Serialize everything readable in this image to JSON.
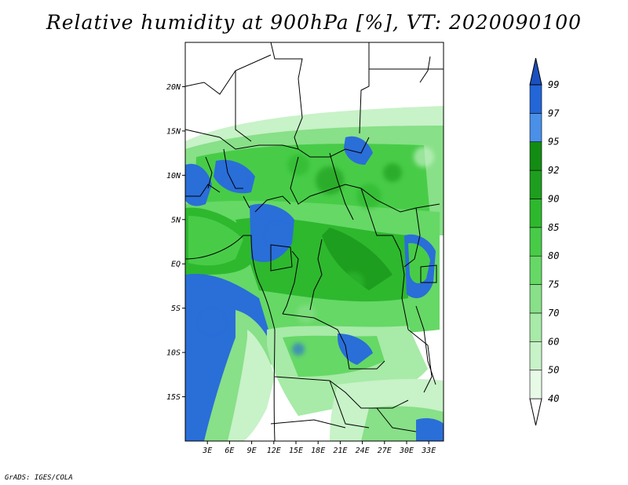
{
  "title": "Relative humidity at 900hPa [%], VT: 2020090100",
  "footer": "GrADS: IGES/COLA",
  "map": {
    "lon_range": [
      0,
      35
    ],
    "lat_range": [
      -20,
      25
    ],
    "lon_ticks": [
      {
        "value": 3,
        "label": "3E"
      },
      {
        "value": 6,
        "label": "6E"
      },
      {
        "value": 9,
        "label": "9E"
      },
      {
        "value": 12,
        "label": "12E"
      },
      {
        "value": 15,
        "label": "15E"
      },
      {
        "value": 18,
        "label": "18E"
      },
      {
        "value": 21,
        "label": "21E"
      },
      {
        "value": 24,
        "label": "24E"
      },
      {
        "value": 27,
        "label": "27E"
      },
      {
        "value": 30,
        "label": "30E"
      },
      {
        "value": 33,
        "label": "33E"
      }
    ],
    "lat_ticks": [
      {
        "value": 20,
        "label": "20N"
      },
      {
        "value": 15,
        "label": "15N"
      },
      {
        "value": 10,
        "label": "10N"
      },
      {
        "value": 5,
        "label": "5N"
      },
      {
        "value": 0,
        "label": "EQ"
      },
      {
        "value": -5,
        "label": "5S"
      },
      {
        "value": -10,
        "label": "10S"
      },
      {
        "value": -15,
        "label": "15S"
      }
    ]
  },
  "colorbar": {
    "levels": [
      "40",
      "50",
      "60",
      "70",
      "75",
      "80",
      "85",
      "90",
      "92",
      "95",
      "97",
      "99"
    ],
    "colors": [
      "#ffffff",
      "#e6fae6",
      "#c8f2c8",
      "#a8eaa8",
      "#88e088",
      "#66d866",
      "#48cc48",
      "#2eb82e",
      "#1e9e1e",
      "#138c13",
      "#4a90e8",
      "#2266d8",
      "#1a50c0"
    ]
  },
  "colors": {
    "border": "#000000",
    "ocean_wet": "#2a6ed8",
    "background": "#ffffff"
  }
}
